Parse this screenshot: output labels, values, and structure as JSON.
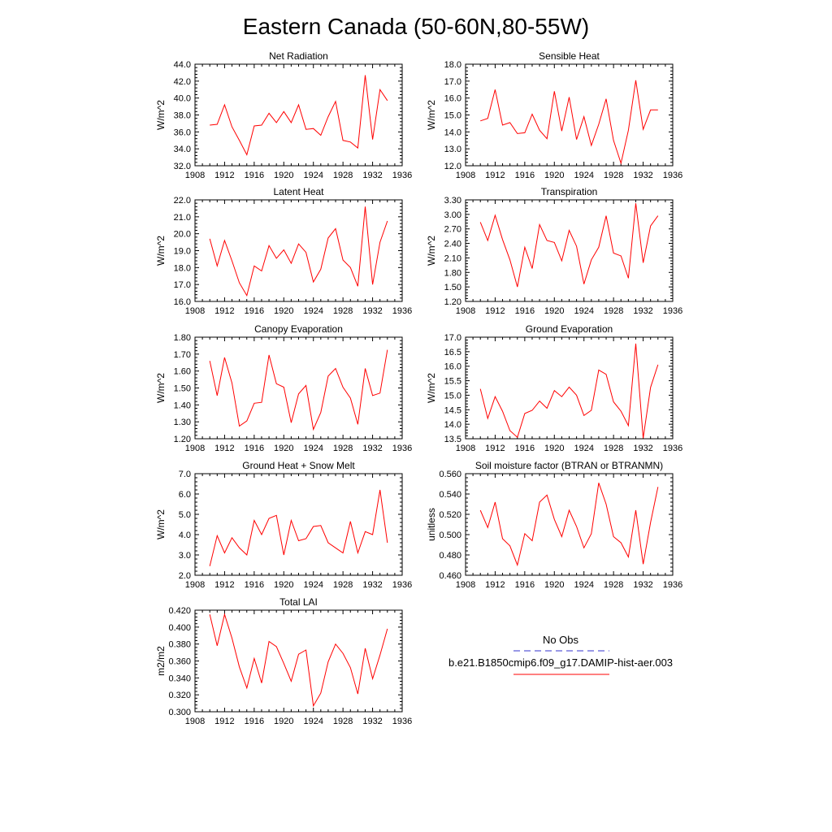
{
  "figure": {
    "title": "Eastern Canada (50-60N,80-55W)",
    "legend": {
      "items": [
        {
          "label": "No Obs",
          "color": "#3333cc",
          "style": "dashed"
        },
        {
          "label": "b.e21.B1850cmip6.f09_g17.DAMIP-hist-aer.003",
          "color": "#ff0000",
          "style": "solid"
        }
      ]
    },
    "series_color": "#ff0000"
  },
  "chart_data": [
    {
      "type": "line",
      "title": "Net Radiation",
      "ylabel": "W/m^2",
      "xlim": [
        1908,
        1936
      ],
      "ylim": [
        32.0,
        44.0
      ],
      "xticks": [
        "1908",
        "1912",
        "1916",
        "1920",
        "1924",
        "1928",
        "1932",
        "1936"
      ],
      "yticks": [
        "32.0",
        "34.0",
        "36.0",
        "38.0",
        "40.0",
        "42.0",
        "44.0"
      ],
      "x": [
        1910,
        1911,
        1912,
        1913,
        1914,
        1915,
        1916,
        1917,
        1918,
        1919,
        1920,
        1921,
        1922,
        1923,
        1924,
        1925,
        1926,
        1927,
        1928,
        1929,
        1930,
        1931,
        1932,
        1933,
        1934
      ],
      "series": [
        {
          "values": [
            36.8,
            36.9,
            39.2,
            36.6,
            35.0,
            33.3,
            36.7,
            36.8,
            38.2,
            37.1,
            38.4,
            37.1,
            39.2,
            36.3,
            36.4,
            35.6,
            37.8,
            39.6,
            35.0,
            34.8,
            34.1,
            42.7,
            35.1,
            41.0,
            39.7
          ]
        }
      ]
    },
    {
      "type": "line",
      "title": "Sensible Heat",
      "ylabel": "W/m^2",
      "xlim": [
        1908,
        1936
      ],
      "ylim": [
        12.0,
        18.0
      ],
      "xticks": [
        "1908",
        "1912",
        "1916",
        "1920",
        "1924",
        "1928",
        "1932",
        "1936"
      ],
      "yticks": [
        "12.0",
        "13.0",
        "14.0",
        "15.0",
        "16.0",
        "17.0",
        "18.0"
      ],
      "x": [
        1910,
        1911,
        1912,
        1913,
        1914,
        1915,
        1916,
        1917,
        1918,
        1919,
        1920,
        1921,
        1922,
        1923,
        1924,
        1925,
        1926,
        1927,
        1928,
        1929,
        1930,
        1931,
        1932,
        1933,
        1934
      ],
      "series": [
        {
          "values": [
            14.65,
            14.8,
            16.5,
            14.4,
            14.55,
            13.9,
            13.95,
            15.05,
            14.1,
            13.6,
            16.4,
            14.05,
            16.05,
            13.55,
            14.9,
            13.2,
            14.45,
            15.95,
            13.5,
            12.15,
            14.1,
            17.05,
            14.15,
            15.3,
            15.3
          ]
        }
      ]
    },
    {
      "type": "line",
      "title": "Latent Heat",
      "ylabel": "W/m^2",
      "xlim": [
        1908,
        1936
      ],
      "ylim": [
        16.0,
        22.0
      ],
      "xticks": [
        "1908",
        "1912",
        "1916",
        "1920",
        "1924",
        "1928",
        "1932",
        "1936"
      ],
      "yticks": [
        "16.0",
        "17.0",
        "18.0",
        "19.0",
        "20.0",
        "21.0",
        "22.0"
      ],
      "x": [
        1910,
        1911,
        1912,
        1913,
        1914,
        1915,
        1916,
        1917,
        1918,
        1919,
        1920,
        1921,
        1922,
        1923,
        1924,
        1925,
        1926,
        1927,
        1928,
        1929,
        1930,
        1931,
        1932,
        1933,
        1934
      ],
      "series": [
        {
          "values": [
            19.7,
            18.1,
            19.6,
            18.4,
            17.1,
            16.35,
            18.1,
            17.8,
            19.3,
            18.55,
            19.05,
            18.25,
            19.4,
            18.9,
            17.15,
            17.9,
            19.75,
            20.3,
            18.45,
            18.0,
            16.9,
            21.6,
            17.0,
            19.5,
            20.75
          ]
        }
      ]
    },
    {
      "type": "line",
      "title": "Transpiration",
      "ylabel": "W/m^2",
      "xlim": [
        1908,
        1936
      ],
      "ylim": [
        1.2,
        3.3
      ],
      "xticks": [
        "1908",
        "1912",
        "1916",
        "1920",
        "1924",
        "1928",
        "1932",
        "1936"
      ],
      "yticks": [
        "1.20",
        "1.50",
        "1.80",
        "2.10",
        "2.40",
        "2.70",
        "3.00",
        "3.30"
      ],
      "x": [
        1910,
        1911,
        1912,
        1913,
        1914,
        1915,
        1916,
        1917,
        1918,
        1919,
        1920,
        1921,
        1922,
        1923,
        1924,
        1925,
        1926,
        1927,
        1928,
        1929,
        1930,
        1931,
        1932,
        1933,
        1934
      ],
      "series": [
        {
          "values": [
            2.84,
            2.46,
            2.98,
            2.48,
            2.06,
            1.5,
            2.32,
            1.88,
            2.79,
            2.46,
            2.42,
            2.04,
            2.67,
            2.34,
            1.56,
            2.06,
            2.32,
            2.97,
            2.2,
            2.14,
            1.68,
            3.23,
            2.0,
            2.76,
            2.97
          ]
        }
      ]
    },
    {
      "type": "line",
      "title": "Canopy Evaporation",
      "ylabel": "W/m^2",
      "xlim": [
        1908,
        1936
      ],
      "ylim": [
        1.2,
        1.8
      ],
      "xticks": [
        "1908",
        "1912",
        "1916",
        "1920",
        "1924",
        "1928",
        "1932",
        "1936"
      ],
      "yticks": [
        "1.20",
        "1.30",
        "1.40",
        "1.50",
        "1.60",
        "1.70",
        "1.80"
      ],
      "x": [
        1910,
        1911,
        1912,
        1913,
        1914,
        1915,
        1916,
        1917,
        1918,
        1919,
        1920,
        1921,
        1922,
        1923,
        1924,
        1925,
        1926,
        1927,
        1928,
        1929,
        1930,
        1931,
        1932,
        1933,
        1934
      ],
      "series": [
        {
          "values": [
            1.66,
            1.455,
            1.68,
            1.53,
            1.275,
            1.305,
            1.41,
            1.415,
            1.695,
            1.525,
            1.505,
            1.295,
            1.465,
            1.515,
            1.255,
            1.355,
            1.57,
            1.615,
            1.505,
            1.44,
            1.285,
            1.615,
            1.455,
            1.47,
            1.725
          ]
        }
      ]
    },
    {
      "type": "line",
      "title": "Ground Evaporation",
      "ylabel": "W/m^2",
      "xlim": [
        1908,
        1936
      ],
      "ylim": [
        13.5,
        17.0
      ],
      "xticks": [
        "1908",
        "1912",
        "1916",
        "1920",
        "1924",
        "1928",
        "1932",
        "1936"
      ],
      "yticks": [
        "13.5",
        "14.0",
        "14.5",
        "15.0",
        "15.5",
        "16.0",
        "16.5",
        "17.0"
      ],
      "x": [
        1910,
        1911,
        1912,
        1913,
        1914,
        1915,
        1916,
        1917,
        1918,
        1919,
        1920,
        1921,
        1922,
        1923,
        1924,
        1925,
        1926,
        1927,
        1928,
        1929,
        1930,
        1931,
        1932,
        1933,
        1934
      ],
      "series": [
        {
          "values": [
            15.22,
            14.2,
            14.95,
            14.45,
            13.78,
            13.55,
            14.37,
            14.48,
            14.8,
            14.55,
            15.16,
            14.95,
            15.28,
            15.0,
            14.3,
            14.48,
            15.87,
            15.72,
            14.77,
            14.45,
            13.95,
            16.78,
            13.52,
            15.27,
            16.05
          ]
        }
      ]
    },
    {
      "type": "line",
      "title": "Ground Heat + Snow Melt",
      "ylabel": "W/m^2",
      "xlim": [
        1908,
        1936
      ],
      "ylim": [
        2.0,
        7.0
      ],
      "xticks": [
        "1908",
        "1912",
        "1916",
        "1920",
        "1924",
        "1928",
        "1932",
        "1936"
      ],
      "yticks": [
        "2.0",
        "3.0",
        "4.0",
        "5.0",
        "6.0",
        "7.0"
      ],
      "x": [
        1910,
        1911,
        1912,
        1913,
        1914,
        1915,
        1916,
        1917,
        1918,
        1919,
        1920,
        1921,
        1922,
        1923,
        1924,
        1925,
        1926,
        1927,
        1928,
        1929,
        1930,
        1931,
        1932,
        1933,
        1934
      ],
      "series": [
        {
          "values": [
            2.45,
            3.95,
            3.1,
            3.85,
            3.35,
            3.0,
            4.7,
            4.0,
            4.8,
            4.95,
            3.0,
            4.7,
            3.7,
            3.8,
            4.4,
            4.45,
            3.6,
            3.35,
            3.1,
            4.65,
            3.1,
            4.15,
            4.0,
            6.2,
            3.6
          ]
        }
      ]
    },
    {
      "type": "line",
      "title": "Soil moisture factor (BTRAN or BTRANMN)",
      "ylabel": "unitless",
      "xlim": [
        1908,
        1936
      ],
      "ylim": [
        0.46,
        0.56
      ],
      "xticks": [
        "1908",
        "1912",
        "1916",
        "1920",
        "1924",
        "1928",
        "1932",
        "1936"
      ],
      "yticks": [
        "0.460",
        "0.480",
        "0.500",
        "0.520",
        "0.540",
        "0.560"
      ],
      "x": [
        1910,
        1911,
        1912,
        1913,
        1914,
        1915,
        1916,
        1917,
        1918,
        1919,
        1920,
        1921,
        1922,
        1923,
        1924,
        1925,
        1926,
        1927,
        1928,
        1929,
        1930,
        1931,
        1932,
        1933,
        1934
      ],
      "series": [
        {
          "values": [
            0.524,
            0.507,
            0.532,
            0.496,
            0.489,
            0.47,
            0.501,
            0.494,
            0.532,
            0.539,
            0.515,
            0.498,
            0.524,
            0.508,
            0.487,
            0.501,
            0.551,
            0.53,
            0.498,
            0.492,
            0.478,
            0.524,
            0.471,
            0.512,
            0.547
          ]
        }
      ]
    },
    {
      "type": "line",
      "title": "Total LAI",
      "ylabel": "m2/m2",
      "xlim": [
        1908,
        1936
      ],
      "ylim": [
        0.3,
        0.42
      ],
      "xticks": [
        "1908",
        "1912",
        "1916",
        "1920",
        "1924",
        "1928",
        "1932",
        "1936"
      ],
      "yticks": [
        "0.300",
        "0.320",
        "0.340",
        "0.360",
        "0.380",
        "0.400",
        "0.420"
      ],
      "x": [
        1910,
        1911,
        1912,
        1913,
        1914,
        1915,
        1916,
        1917,
        1918,
        1919,
        1920,
        1921,
        1922,
        1923,
        1924,
        1925,
        1926,
        1927,
        1928,
        1929,
        1930,
        1931,
        1932,
        1933,
        1934
      ],
      "series": [
        {
          "values": [
            0.415,
            0.378,
            0.415,
            0.387,
            0.353,
            0.328,
            0.363,
            0.334,
            0.383,
            0.377,
            0.357,
            0.336,
            0.368,
            0.373,
            0.307,
            0.322,
            0.359,
            0.38,
            0.369,
            0.352,
            0.321,
            0.375,
            0.339,
            0.367,
            0.398
          ]
        }
      ]
    }
  ]
}
